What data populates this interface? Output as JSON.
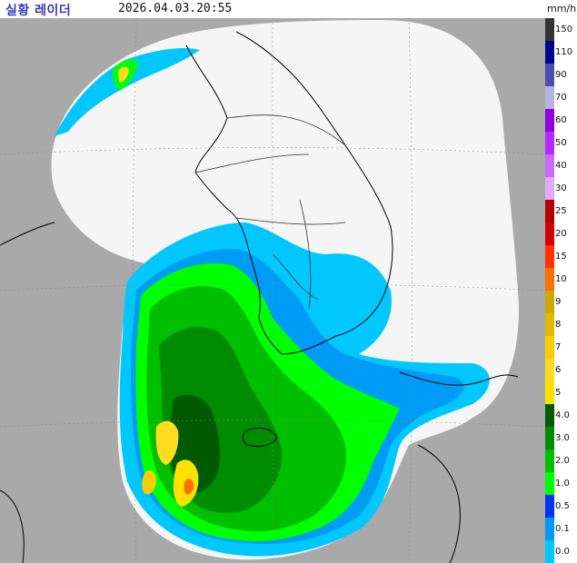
{
  "header": {
    "title": "실황 레이더",
    "timestamp": "2026.04.03.20:55",
    "unit": "mm/h"
  },
  "legend": {
    "items": [
      {
        "label": "150",
        "color": "#333333"
      },
      {
        "label": "110",
        "color": "#000390"
      },
      {
        "label": "90",
        "color": "#4c4eb1"
      },
      {
        "label": "70",
        "color": "#b3b4de"
      },
      {
        "label": "60",
        "color": "#9300e4"
      },
      {
        "label": "50",
        "color": "#b329ff"
      },
      {
        "label": "40",
        "color": "#c969ff"
      },
      {
        "label": "30",
        "color": "#e0a9ff"
      },
      {
        "label": "25",
        "color": "#b40000"
      },
      {
        "label": "20",
        "color": "#d20000"
      },
      {
        "label": "15",
        "color": "#ff3200"
      },
      {
        "label": "10",
        "color": "#ff6e00"
      },
      {
        "label": "9",
        "color": "#ccaa00"
      },
      {
        "label": "8",
        "color": "#e0b900"
      },
      {
        "label": "7",
        "color": "#f9cd00"
      },
      {
        "label": "6",
        "color": "#ffdc1f"
      },
      {
        "label": "5",
        "color": "#ffe100"
      },
      {
        "label": "4.0",
        "color": "#005a00"
      },
      {
        "label": "3.0",
        "color": "#008c00"
      },
      {
        "label": "2.0",
        "color": "#00be00"
      },
      {
        "label": "1.0",
        "color": "#00ff00"
      },
      {
        "label": "0.5",
        "color": "#0033f5"
      },
      {
        "label": "0.1",
        "color": "#009bf5"
      },
      {
        "label": "0.0",
        "color": "#00c8ff"
      }
    ]
  },
  "colors": {
    "outside_coverage": "#a9a9a9",
    "coverage_background": "#f5f5f5",
    "title": "#3a3ab4"
  }
}
